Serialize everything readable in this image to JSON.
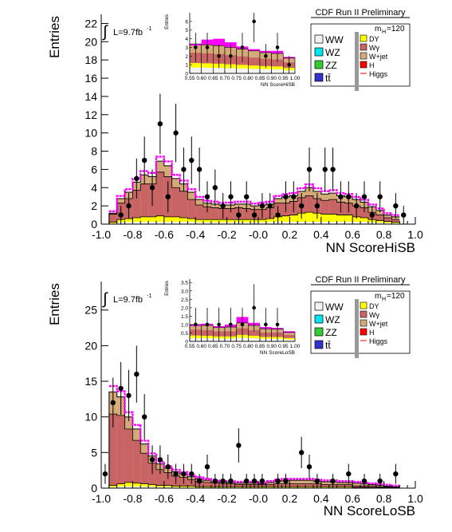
{
  "panels": [
    {
      "id": "top",
      "title": "CDF Run II Preliminary",
      "lumi": "L=9.7fb",
      "lumi_exp": "-1",
      "ylabel": "Entries",
      "xlabel": "NN ScoreHiSB",
      "mass_label": "m",
      "mass_sub": "H",
      "mass_val": "=120",
      "inset_xlabel": "NN ScoreHiSB",
      "inset_ylabel": "Entries"
    },
    {
      "id": "bottom",
      "title": "CDF Run II Preliminary",
      "lumi": "L=9.7fb",
      "lumi_exp": "-1",
      "ylabel": "Entries",
      "xlabel": "NN ScoreLoSB",
      "mass_label": "m",
      "mass_sub": "H",
      "mass_val": "=120",
      "inset_xlabel": "NN ScoreLoSB",
      "inset_ylabel": "Entries"
    }
  ],
  "legend": {
    "left": [
      {
        "label": "WW",
        "color": "#f2f2f2"
      },
      {
        "label": "WZ",
        "color": "#00e5ee"
      },
      {
        "label": "ZZ",
        "color": "#33cc33"
      },
      {
        "label": "tt̄",
        "color": "#3333cc"
      }
    ],
    "right": [
      {
        "label": "DY",
        "color": "#ffff00"
      },
      {
        "label": "Wγ",
        "color": "#c86464"
      },
      {
        "label": "W+jet",
        "color": "#d4aa78"
      },
      {
        "label": "H",
        "color": "#ff0000"
      },
      {
        "label": "Higgs",
        "color": "#ff0000"
      }
    ]
  },
  "chart_data": [
    {
      "type": "bar",
      "stacked": true,
      "xlim": [
        -1.0,
        1.0
      ],
      "ylim": [
        0,
        23
      ],
      "xticks": [
        "-1.0",
        "-0.8",
        "-0.6",
        "-0.4",
        "-0.2",
        "-0.0",
        "0.2",
        "0.4",
        "0.6",
        "0.8",
        "1.0"
      ],
      "yticks": [
        "0",
        "2",
        "4",
        "6",
        "8",
        "10",
        "12",
        "14",
        "16",
        "18",
        "20",
        "22"
      ],
      "bin_width": 0.05,
      "bin_edges_start": -0.95,
      "stack_totals": [
        1.2,
        2.8,
        3.5,
        4.6,
        5.4,
        5.2,
        6.9,
        6.4,
        5.0,
        4.4,
        3.5,
        2.7,
        2.3,
        2.2,
        2.1,
        2.1,
        2.2,
        2.2,
        2.0,
        2.1,
        2.2,
        2.8,
        3.0,
        3.1,
        3.6,
        4.0,
        3.6,
        3.3,
        3.4,
        3.1,
        3.0,
        2.7,
        2.4,
        1.9,
        1.5,
        1.0,
        0.8
      ],
      "wgamma": [
        0.9,
        1.8,
        2.2,
        3.0,
        3.6,
        3.6,
        4.8,
        4.4,
        3.2,
        2.9,
        2.1,
        1.6,
        1.4,
        1.3,
        1.2,
        1.2,
        1.3,
        1.2,
        1.1,
        1.1,
        1.2,
        1.5,
        1.4,
        1.5,
        1.7,
        1.8,
        1.6,
        1.5,
        1.6,
        1.4,
        1.3,
        1.2,
        1.1,
        0.8,
        0.6,
        0.4,
        0.3
      ],
      "dy": [
        0.2,
        0.5,
        0.6,
        0.7,
        0.8,
        0.8,
        0.9,
        0.8,
        0.8,
        0.7,
        0.6,
        0.5,
        0.5,
        0.5,
        0.5,
        0.5,
        0.5,
        0.5,
        0.5,
        0.5,
        0.6,
        0.8,
        0.9,
        1.0,
        1.2,
        1.3,
        1.2,
        1.1,
        1.1,
        1.0,
        1.0,
        0.8,
        0.7,
        0.5,
        0.4,
        0.3,
        0.2
      ],
      "data_points": [
        {
          "x": -0.875,
          "y": 1,
          "err": 1.0
        },
        {
          "x": -0.825,
          "y": 2,
          "err": 1.4
        },
        {
          "x": -0.775,
          "y": 5,
          "err": 2.2
        },
        {
          "x": -0.725,
          "y": 7,
          "err": 2.6
        },
        {
          "x": -0.675,
          "y": 4,
          "err": 2.0
        },
        {
          "x": -0.625,
          "y": 11,
          "err": 3.3
        },
        {
          "x": -0.575,
          "y": 3,
          "err": 1.7
        },
        {
          "x": -0.525,
          "y": 10,
          "err": 3.2
        },
        {
          "x": -0.475,
          "y": 6,
          "err": 2.4
        },
        {
          "x": -0.425,
          "y": 7,
          "err": 2.6
        },
        {
          "x": -0.375,
          "y": 6,
          "err": 2.4
        },
        {
          "x": -0.325,
          "y": 3,
          "err": 1.7
        },
        {
          "x": -0.275,
          "y": 4,
          "err": 2.0
        },
        {
          "x": -0.225,
          "y": 2,
          "err": 1.4
        },
        {
          "x": -0.175,
          "y": 3,
          "err": 1.7
        },
        {
          "x": -0.125,
          "y": 1,
          "err": 1.0
        },
        {
          "x": -0.075,
          "y": 3,
          "err": 1.7
        },
        {
          "x": -0.025,
          "y": 1,
          "err": 1.0
        },
        {
          "x": 0.025,
          "y": 2,
          "err": 1.4
        },
        {
          "x": 0.075,
          "y": 2,
          "err": 1.4
        },
        {
          "x": 0.125,
          "y": 1,
          "err": 1.0
        },
        {
          "x": 0.175,
          "y": 3,
          "err": 1.7
        },
        {
          "x": 0.225,
          "y": 3,
          "err": 1.7
        },
        {
          "x": 0.275,
          "y": 2,
          "err": 1.4
        },
        {
          "x": 0.325,
          "y": 6,
          "err": 2.4
        },
        {
          "x": 0.375,
          "y": 2,
          "err": 1.4
        },
        {
          "x": 0.425,
          "y": 6,
          "err": 2.4
        },
        {
          "x": 0.475,
          "y": 6,
          "err": 2.4
        },
        {
          "x": 0.525,
          "y": 3,
          "err": 1.7
        },
        {
          "x": 0.575,
          "y": 3,
          "err": 1.7
        },
        {
          "x": 0.625,
          "y": 2,
          "err": 1.4
        },
        {
          "x": 0.675,
          "y": 3,
          "err": 1.7
        },
        {
          "x": 0.725,
          "y": 1,
          "err": 1.0
        },
        {
          "x": 0.775,
          "y": 3,
          "err": 1.7
        },
        {
          "x": 0.875,
          "y": 2,
          "err": 1.4
        },
        {
          "x": 0.925,
          "y": 1,
          "err": 1.0
        }
      ],
      "inset": {
        "xlim": [
          0.55,
          1.0
        ],
        "ylim": [
          0,
          7
        ],
        "xticks": [
          "0.55",
          "0.60",
          "0.65",
          "0.70",
          "0.75",
          "0.80",
          "0.85",
          "0.90",
          "0.95",
          "1.00"
        ],
        "yticks": [
          "0",
          "1",
          "2",
          "3",
          "4",
          "5",
          "6"
        ],
        "totals": [
          3.4,
          3.3,
          3.2,
          3.0,
          2.8,
          2.6,
          2.4,
          2.3,
          1.8
        ],
        "higgs": [
          0.0,
          0.6,
          0.8,
          0.6,
          0.3,
          0.2,
          0.2,
          0.3,
          0.1
        ],
        "data_points": [
          {
            "x": 0.575,
            "y": 3,
            "err": 1.7
          },
          {
            "x": 0.625,
            "y": 3,
            "err": 1.7
          },
          {
            "x": 0.675,
            "y": 2,
            "err": 1.4
          },
          {
            "x": 0.725,
            "y": 2,
            "err": 1.4
          },
          {
            "x": 0.775,
            "y": 3,
            "err": 1.7
          },
          {
            "x": 0.825,
            "y": 6,
            "err": 2.4
          },
          {
            "x": 0.875,
            "y": 2,
            "err": 1.4
          },
          {
            "x": 0.925,
            "y": 3,
            "err": 1.7
          },
          {
            "x": 0.975,
            "y": 1,
            "err": 1.0
          }
        ]
      }
    },
    {
      "type": "bar",
      "stacked": true,
      "xlim": [
        -1.0,
        1.0
      ],
      "ylim": [
        0,
        29
      ],
      "xticks": [
        "-1.0",
        "-0.8",
        "-0.6",
        "-0.4",
        "-0.2",
        "-0.0",
        "0.2",
        "0.4",
        "0.6",
        "0.8",
        "1.0"
      ],
      "yticks": [
        "0",
        "5",
        "10",
        "15",
        "20",
        "25"
      ],
      "bin_width": 0.05,
      "bin_edges_start": -0.95,
      "stack_totals": [
        13.5,
        12.8,
        10.0,
        8.3,
        6.2,
        4.5,
        3.4,
        2.8,
        2.3,
        2.0,
        1.6,
        1.3,
        1.1,
        0.9,
        0.8,
        0.8,
        0.7,
        0.7,
        0.7,
        0.6,
        0.8,
        1.0,
        1.1,
        1.1,
        1.1,
        1.1,
        1.0,
        0.9,
        0.9,
        0.8,
        0.8,
        0.7,
        0.6,
        0.5,
        0.4,
        0.3,
        0.2
      ],
      "wgamma": [
        10.0,
        9.6,
        7.5,
        6.0,
        4.3,
        3.0,
        2.2,
        1.8,
        1.4,
        1.2,
        0.9,
        0.7,
        0.6,
        0.5,
        0.4,
        0.4,
        0.3,
        0.3,
        0.3,
        0.3,
        0.3,
        0.4,
        0.4,
        0.4,
        0.4,
        0.4,
        0.4,
        0.3,
        0.3,
        0.3,
        0.3,
        0.2,
        0.2,
        0.2,
        0.1,
        0.1,
        0.1
      ],
      "dy": [
        0.4,
        0.6,
        0.8,
        0.7,
        0.6,
        0.5,
        0.4,
        0.4,
        0.3,
        0.3,
        0.3,
        0.2,
        0.2,
        0.2,
        0.2,
        0.2,
        0.2,
        0.2,
        0.2,
        0.2,
        0.2,
        0.2,
        0.2,
        0.2,
        0.2,
        0.2,
        0.2,
        0.2,
        0.2,
        0.2,
        0.2,
        0.1,
        0.1,
        0.1,
        0.1,
        0.1,
        0.1
      ],
      "data_points": [
        {
          "x": -0.975,
          "y": 2,
          "err": 1.4
        },
        {
          "x": -0.925,
          "y": 12,
          "err": 3.5
        },
        {
          "x": -0.875,
          "y": 14,
          "err": 3.7
        },
        {
          "x": -0.825,
          "y": 13,
          "err": 3.6
        },
        {
          "x": -0.775,
          "y": 16,
          "err": 4.0
        },
        {
          "x": -0.725,
          "y": 10,
          "err": 3.2
        },
        {
          "x": -0.675,
          "y": 4,
          "err": 2.0
        },
        {
          "x": -0.625,
          "y": 4,
          "err": 2.0
        },
        {
          "x": -0.575,
          "y": 3,
          "err": 1.7
        },
        {
          "x": -0.525,
          "y": 2,
          "err": 1.4
        },
        {
          "x": -0.475,
          "y": 2,
          "err": 1.4
        },
        {
          "x": -0.425,
          "y": 2,
          "err": 1.4
        },
        {
          "x": -0.375,
          "y": 1,
          "err": 1.0
        },
        {
          "x": -0.325,
          "y": 3,
          "err": 1.7
        },
        {
          "x": -0.275,
          "y": 1,
          "err": 1.0
        },
        {
          "x": -0.225,
          "y": 1,
          "err": 1.0
        },
        {
          "x": -0.175,
          "y": 1,
          "err": 1.0
        },
        {
          "x": -0.125,
          "y": 6,
          "err": 2.4
        },
        {
          "x": -0.075,
          "y": 1,
          "err": 1.0
        },
        {
          "x": -0.025,
          "y": 1,
          "err": 1.0
        },
        {
          "x": 0.025,
          "y": 1,
          "err": 1.0
        },
        {
          "x": 0.125,
          "y": 1,
          "err": 1.0
        },
        {
          "x": 0.175,
          "y": 1,
          "err": 1.0
        },
        {
          "x": 0.275,
          "y": 5,
          "err": 2.2
        },
        {
          "x": 0.325,
          "y": 3,
          "err": 1.7
        },
        {
          "x": 0.375,
          "y": 1,
          "err": 1.0
        },
        {
          "x": 0.475,
          "y": 1,
          "err": 1.0
        },
        {
          "x": 0.575,
          "y": 2,
          "err": 1.4
        },
        {
          "x": 0.675,
          "y": 1,
          "err": 1.0
        },
        {
          "x": 0.775,
          "y": 1,
          "err": 1.0
        },
        {
          "x": 0.875,
          "y": 2,
          "err": 1.4
        }
      ],
      "inset": {
        "xlim": [
          0.55,
          1.0
        ],
        "ylim": [
          0,
          3.7
        ],
        "xticks": [
          "0.55",
          "0.60",
          "0.65",
          "0.70",
          "0.75",
          "0.80",
          "0.85",
          "0.90",
          "0.95",
          "1.00"
        ],
        "yticks": [
          "0",
          "0.5",
          "1.0",
          "1.5",
          "2.0",
          "2.5",
          "3.0",
          "3.5"
        ],
        "totals": [
          1.0,
          0.95,
          0.85,
          0.85,
          1.1,
          0.95,
          0.75,
          0.75,
          0.55
        ],
        "higgs": [
          0.0,
          0.1,
          0.05,
          0.15,
          0.35,
          0.15,
          0.1,
          0.05,
          0.05
        ],
        "data_points": [
          {
            "x": 0.575,
            "y": 1,
            "err": 1.0
          },
          {
            "x": 0.625,
            "y": 1,
            "err": 1.0
          },
          {
            "x": 0.675,
            "y": 1,
            "err": 1.0
          },
          {
            "x": 0.725,
            "y": 1,
            "err": 1.0
          },
          {
            "x": 0.775,
            "y": 1,
            "err": 1.0
          },
          {
            "x": 0.825,
            "y": 2,
            "err": 1.4
          },
          {
            "x": 0.875,
            "y": 1,
            "err": 1.0
          },
          {
            "x": 0.925,
            "y": 1,
            "err": 1.0
          }
        ]
      }
    }
  ]
}
